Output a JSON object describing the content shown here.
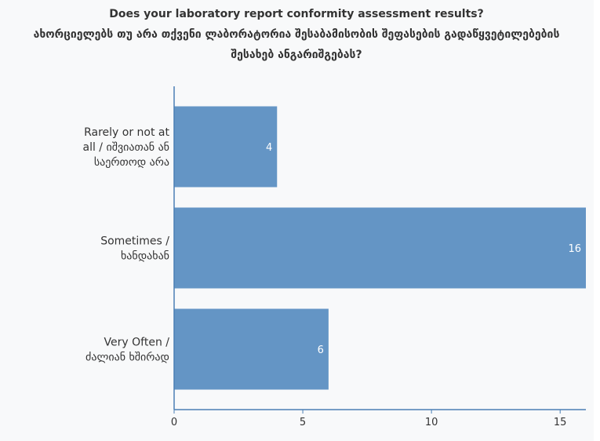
{
  "chart_data": {
    "type": "bar",
    "orientation": "horizontal",
    "title": [
      "Does your laboratory report conformity assessment results?",
      "ახორციელებს თუ არა თქვენი ლაბორატორია შესაბამისობის შეფასების გადაწყვეტილებების",
      "შესახებ ანგარიშგებას?"
    ],
    "categories": [
      [
        "Rarely or not at",
        "all / იშვიათან ან",
        "საერთოდ არა"
      ],
      [
        "Sometimes /",
        "ხანდახან"
      ],
      [
        "Very Often /",
        "ძალიან ხშირად"
      ]
    ],
    "values": [
      4,
      16,
      6
    ],
    "xlim": [
      0,
      16
    ],
    "xticks": [
      "0",
      "5",
      "10",
      "15"
    ],
    "xtick_values": [
      0,
      5,
      10,
      15
    ],
    "grid": false,
    "legend": "none"
  },
  "colors": {
    "bar": "#6495c5",
    "axis": "#4a7fb5",
    "background": "#f8f9fa"
  }
}
